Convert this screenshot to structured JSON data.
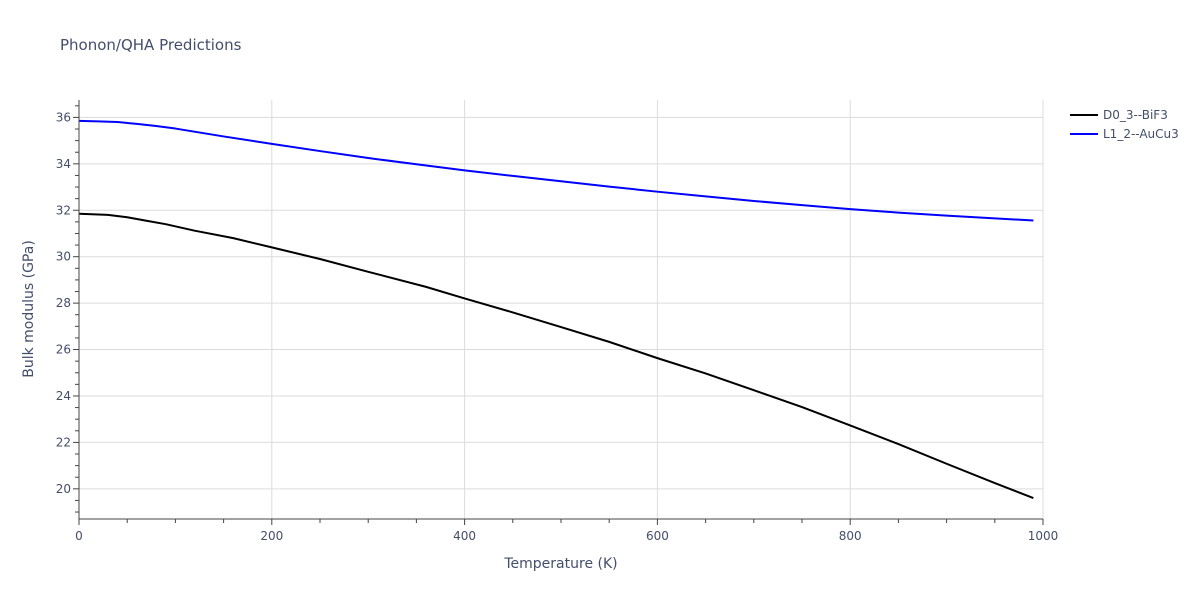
{
  "chart_data": {
    "type": "line",
    "title": "Phonon/QHA Predictions",
    "xlabel": "Temperature (K)",
    "ylabel": "Bulk modulus (GPa)",
    "xlim": [
      0,
      1000
    ],
    "ylim": [
      18.7,
      36.75
    ],
    "x_ticks": [
      0,
      200,
      400,
      600,
      800,
      1000
    ],
    "y_ticks": [
      20,
      22,
      24,
      26,
      28,
      30,
      32,
      34,
      36
    ],
    "grid": true,
    "legend_position": "top-right",
    "series": [
      {
        "name": "D0_3--BiF3",
        "color": "#000000",
        "x": [
          0,
          20,
          30,
          50,
          70,
          90,
          120,
          160,
          200,
          250,
          300,
          360,
          400,
          450,
          500,
          550,
          600,
          650,
          700,
          750,
          800,
          850,
          900,
          950,
          990
        ],
        "y": [
          31.85,
          31.82,
          31.8,
          31.7,
          31.55,
          31.4,
          31.12,
          30.8,
          30.4,
          29.9,
          29.35,
          28.7,
          28.2,
          27.6,
          26.97,
          26.33,
          25.63,
          24.97,
          24.25,
          23.52,
          22.73,
          21.93,
          21.08,
          20.25,
          19.6
        ]
      },
      {
        "name": "L1_2--AuCu3",
        "color": "#0000ff",
        "x": [
          0,
          20,
          40,
          60,
          80,
          100,
          150,
          200,
          250,
          300,
          350,
          400,
          450,
          500,
          550,
          600,
          650,
          700,
          750,
          800,
          850,
          900,
          950,
          990
        ],
        "y": [
          35.85,
          35.83,
          35.8,
          35.72,
          35.63,
          35.52,
          35.18,
          34.86,
          34.55,
          34.25,
          33.98,
          33.72,
          33.48,
          33.25,
          33.02,
          32.8,
          32.6,
          32.4,
          32.22,
          32.05,
          31.9,
          31.77,
          31.65,
          31.56
        ]
      }
    ]
  }
}
